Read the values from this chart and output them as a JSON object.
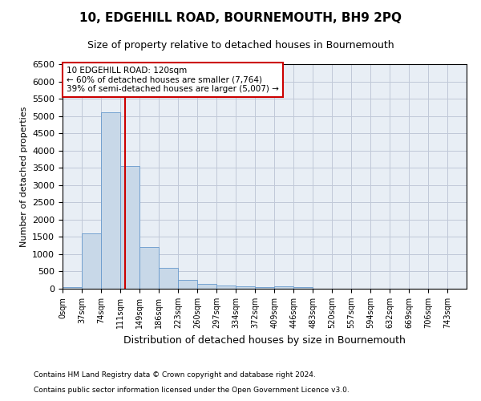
{
  "title": "10, EDGEHILL ROAD, BOURNEMOUTH, BH9 2PQ",
  "subtitle": "Size of property relative to detached houses in Bournemouth",
  "xlabel": "Distribution of detached houses by size in Bournemouth",
  "ylabel": "Number of detached properties",
  "footnote1": "Contains HM Land Registry data © Crown copyright and database right 2024.",
  "footnote2": "Contains public sector information licensed under the Open Government Licence v3.0.",
  "annotation_title": "10 EDGEHILL ROAD: 120sqm",
  "annotation_line1": "← 60% of detached houses are smaller (7,764)",
  "annotation_line2": "39% of semi-detached houses are larger (5,007) →",
  "bar_color": "#c8d8e8",
  "bar_edge_color": "#6699cc",
  "vline_x": 120,
  "vline_color": "#cc0000",
  "categories": [
    "0sqm",
    "37sqm",
    "74sqm",
    "111sqm",
    "149sqm",
    "186sqm",
    "223sqm",
    "260sqm",
    "297sqm",
    "334sqm",
    "372sqm",
    "409sqm",
    "446sqm",
    "483sqm",
    "520sqm",
    "557sqm",
    "594sqm",
    "632sqm",
    "669sqm",
    "706sqm",
    "743sqm"
  ],
  "bin_edges": [
    0,
    37,
    74,
    111,
    149,
    186,
    223,
    260,
    297,
    334,
    372,
    409,
    446,
    483,
    520,
    557,
    594,
    632,
    669,
    706,
    743,
    780
  ],
  "values": [
    50,
    1600,
    5100,
    3550,
    1200,
    600,
    250,
    150,
    100,
    80,
    50,
    70,
    40,
    0,
    0,
    0,
    0,
    0,
    0,
    0,
    0
  ],
  "ylim": [
    0,
    6500
  ],
  "yticks": [
    0,
    500,
    1000,
    1500,
    2000,
    2500,
    3000,
    3500,
    4000,
    4500,
    5000,
    5500,
    6000,
    6500
  ],
  "grid_color": "#c0c8d8",
  "bg_color": "#e8eef5",
  "title_fontsize": 11,
  "subtitle_fontsize": 9
}
